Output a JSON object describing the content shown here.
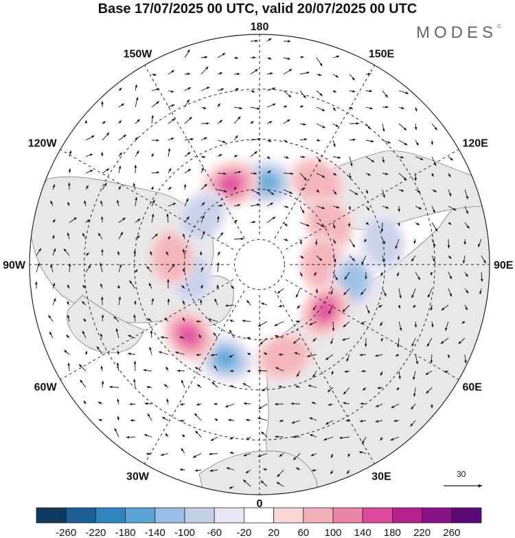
{
  "title": "Base 17/07/2025 00 UTC, valid 20/07/2025 00 UTC",
  "brand": {
    "name": "MODES",
    "mark": "©"
  },
  "map": {
    "projection": "north polar stereographic",
    "longitude_labels": [
      {
        "text": "180",
        "lon": 180
      },
      {
        "text": "150E",
        "lon": 150
      },
      {
        "text": "120E",
        "lon": 120
      },
      {
        "text": "90E",
        "lon": 90
      },
      {
        "text": "60E",
        "lon": 60
      },
      {
        "text": "30E",
        "lon": 30
      },
      {
        "text": "0",
        "lon": 0
      },
      {
        "text": "30W",
        "lon": -30
      },
      {
        "text": "60W",
        "lon": -60
      },
      {
        "text": "90W",
        "lon": -90
      },
      {
        "text": "120W",
        "lon": -120
      },
      {
        "text": "150W",
        "lon": -150
      }
    ],
    "latitude_circles": [
      20,
      40,
      60,
      80
    ],
    "anomalies": [
      {
        "sign": "negative",
        "lon": 175,
        "lat": 57,
        "level": -140
      },
      {
        "sign": "positive",
        "lon": -160,
        "lat": 56,
        "level": 140
      },
      {
        "sign": "positive",
        "lon": 145,
        "lat": 50,
        "level": 60
      },
      {
        "sign": "positive",
        "lon": 120,
        "lat": 58,
        "level": 60
      },
      {
        "sign": "positive",
        "lon": 90,
        "lat": 65,
        "level": 60
      },
      {
        "sign": "negative",
        "lon": 80,
        "lat": 52,
        "level": -100
      },
      {
        "sign": "positive",
        "lon": 55,
        "lat": 58,
        "level": 140
      },
      {
        "sign": "positive",
        "lon": 15,
        "lat": 52,
        "level": 60
      },
      {
        "sign": "negative",
        "lon": -20,
        "lat": 50,
        "level": -140
      },
      {
        "sign": "positive",
        "lon": -45,
        "lat": 50,
        "level": 140
      },
      {
        "sign": "negative",
        "lon": -80,
        "lat": 62,
        "level": -60
      },
      {
        "sign": "positive",
        "lon": -95,
        "lat": 55,
        "level": 60
      },
      {
        "sign": "negative",
        "lon": -130,
        "lat": 60,
        "level": -60
      },
      {
        "sign": "negative",
        "lon": 100,
        "lat": 40,
        "level": -60
      }
    ],
    "vector_scale_label": "30"
  },
  "colorbar": {
    "ticks": [
      "-260",
      "-220",
      "-180",
      "-140",
      "-100",
      "-60",
      "-20",
      "20",
      "60",
      "100",
      "140",
      "180",
      "220",
      "260"
    ],
    "colors": [
      "#0e3a5e",
      "#1a5f95",
      "#2e86c1",
      "#5aa5d6",
      "#98bfe6",
      "#c4cfe8",
      "#e6e6f4",
      "#ffffff",
      "#f8d6d6",
      "#f4b0b8",
      "#ec84a8",
      "#e04a9e",
      "#b8218e",
      "#8a1288",
      "#5a0a78"
    ]
  },
  "colors": {
    "grid": "#222222",
    "land": "#e8e8e8",
    "coast": "#555555",
    "positive": "#ec84a8",
    "negative": "#2e86c1"
  }
}
